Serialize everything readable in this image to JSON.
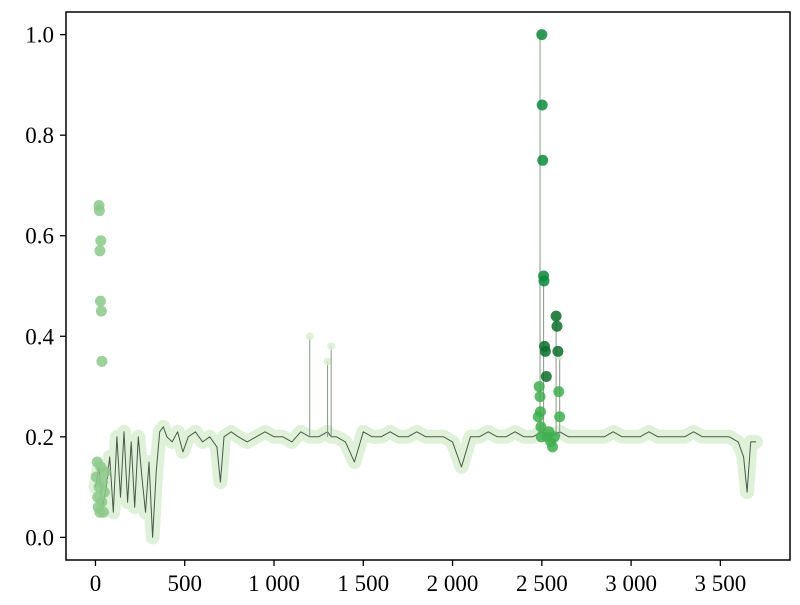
{
  "chart_data": {
    "type": "scatter",
    "title": "",
    "xlabel": "",
    "ylabel": "",
    "xlim": [
      -165,
      3890
    ],
    "ylim": [
      -0.045,
      1.045
    ],
    "x_ticks": [
      0,
      500,
      1000,
      1500,
      2000,
      2500,
      3000,
      3500
    ],
    "x_tick_labels": [
      "0",
      "500",
      "1 000",
      "1 500",
      "2 000",
      "2 500",
      "3 000",
      "3 500"
    ],
    "y_ticks": [
      0.0,
      0.2,
      0.4,
      0.6,
      0.8,
      1.0
    ],
    "y_tick_labels": [
      "0.0",
      "0.2",
      "0.4",
      "0.6",
      "0.8",
      "1.0"
    ],
    "grid": false,
    "legend": "none",
    "colors": {
      "line": "#4a5a4a",
      "halo": "#d9efd2",
      "light_green": "#8cc98a",
      "mid_green": "#3fae4e",
      "dark_green": "#0d8a3c",
      "darkest_green": "#0a6d2c"
    },
    "series": [
      {
        "role": "baseline trace",
        "x": [
          0,
          20,
          40,
          60,
          80,
          100,
          120,
          140,
          160,
          180,
          200,
          220,
          240,
          260,
          280,
          300,
          320,
          340,
          360,
          380,
          400,
          430,
          460,
          490,
          520,
          560,
          600,
          640,
          680,
          700,
          720,
          760,
          800,
          850,
          900,
          950,
          1000,
          1050,
          1100,
          1150,
          1200,
          1250,
          1300,
          1320,
          1350,
          1400,
          1450,
          1500,
          1550,
          1600,
          1650,
          1700,
          1750,
          1800,
          1850,
          1900,
          1950,
          2000,
          2050,
          2100,
          2150,
          2200,
          2250,
          2300,
          2350,
          2400,
          2450,
          2500,
          2550,
          2600,
          2650,
          2700,
          2750,
          2800,
          2850,
          2900,
          2950,
          3000,
          3050,
          3100,
          3150,
          3200,
          3250,
          3300,
          3350,
          3400,
          3450,
          3500,
          3550,
          3600,
          3630,
          3650,
          3670,
          3700
        ],
        "y": [
          0.1,
          0.14,
          0.06,
          0.1,
          0.16,
          0.05,
          0.2,
          0.08,
          0.21,
          0.07,
          0.19,
          0.06,
          0.2,
          0.12,
          0.05,
          0.15,
          0.0,
          0.13,
          0.21,
          0.22,
          0.2,
          0.19,
          0.21,
          0.17,
          0.2,
          0.21,
          0.19,
          0.2,
          0.18,
          0.11,
          0.2,
          0.21,
          0.2,
          0.19,
          0.2,
          0.21,
          0.2,
          0.2,
          0.19,
          0.21,
          0.2,
          0.2,
          0.21,
          0.2,
          0.2,
          0.19,
          0.15,
          0.21,
          0.2,
          0.2,
          0.21,
          0.2,
          0.2,
          0.21,
          0.2,
          0.2,
          0.2,
          0.19,
          0.14,
          0.2,
          0.2,
          0.21,
          0.2,
          0.2,
          0.21,
          0.2,
          0.2,
          0.21,
          0.2,
          0.21,
          0.2,
          0.2,
          0.2,
          0.2,
          0.2,
          0.21,
          0.2,
          0.2,
          0.2,
          0.21,
          0.2,
          0.2,
          0.2,
          0.2,
          0.21,
          0.2,
          0.2,
          0.2,
          0.2,
          0.19,
          0.16,
          0.09,
          0.19,
          0.19
        ]
      },
      {
        "role": "spikes",
        "x": [
          1200,
          1300,
          1320,
          2490,
          2510,
          2580,
          2600
        ],
        "y": [
          0.4,
          0.35,
          0.38,
          1.0,
          0.52,
          0.44,
          0.36
        ]
      },
      {
        "role": "highlighted points",
        "x": [
          5,
          10,
          12,
          15,
          20,
          25,
          30,
          35,
          40,
          45,
          50,
          55,
          20,
          22,
          30,
          25,
          28,
          33,
          36,
          2480,
          2485,
          2490,
          2492,
          2495,
          2497,
          2500,
          2502,
          2505,
          2510,
          2512,
          2515,
          2520,
          2525,
          2530,
          2540,
          2550,
          2560,
          2570,
          2580,
          2585,
          2590,
          2595,
          2600
        ],
        "y": [
          0.12,
          0.15,
          0.08,
          0.06,
          0.1,
          0.05,
          0.14,
          0.07,
          0.11,
          0.05,
          0.09,
          0.13,
          0.66,
          0.65,
          0.59,
          0.57,
          0.47,
          0.45,
          0.35,
          0.24,
          0.3,
          0.28,
          0.25,
          0.22,
          0.2,
          1.0,
          0.86,
          0.75,
          0.52,
          0.51,
          0.38,
          0.37,
          0.32,
          0.2,
          0.21,
          0.19,
          0.18,
          0.2,
          0.44,
          0.42,
          0.37,
          0.29,
          0.24
        ]
      }
    ]
  }
}
